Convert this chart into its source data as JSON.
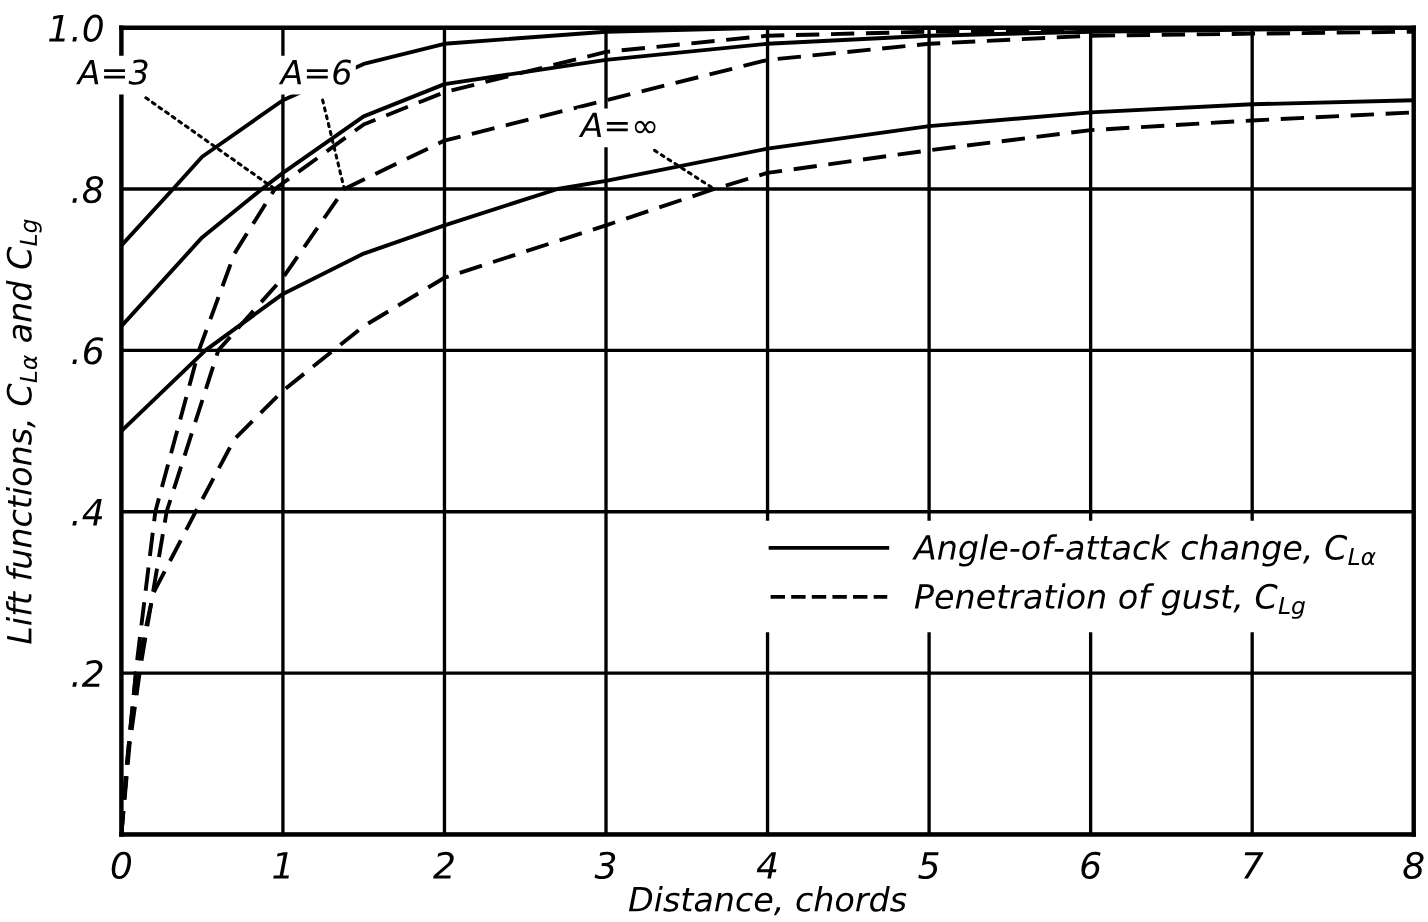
{
  "chart_data": {
    "type": "line",
    "xlabel": "Distance, chords",
    "ylabel": "Lift functions, C$_{Lα}$ and C$_{Lg}$",
    "xlim": [
      0,
      8
    ],
    "xticks": [
      0,
      1,
      2,
      3,
      4,
      5,
      6,
      7,
      8
    ],
    "ylim": [
      0,
      1
    ],
    "yticks": [
      {
        "value": 0,
        "label": null
      },
      {
        "value": 0.2,
        "label": ".2"
      },
      {
        "value": 0.4,
        "label": ".4"
      },
      {
        "value": 0.6,
        "label": ".6"
      },
      {
        "value": 0.8,
        "label": ".8"
      },
      {
        "value": 1.0,
        "label": "1.0"
      }
    ],
    "grid": true,
    "legend": "bottom right",
    "marker": "none",
    "series": [
      {
        "name": "Angle-of-attack change, C$_{Lα}$",
        "color": "#000000",
        "line_style": "solid",
        "x": [
          0,
          0.32,
          0.5,
          1,
          1.5,
          2,
          3,
          4,
          8
        ],
        "values": [
          0.73,
          0.8,
          0.84,
          0.91,
          0.955,
          0.98,
          0.995,
          1.0,
          1.0
        ]
      },
      {
        "color": "#000000",
        "line_style": "solid",
        "x": [
          0,
          0.5,
          0.87,
          1,
          1.5,
          2,
          3,
          4,
          5,
          6,
          8
        ],
        "values": [
          0.63,
          0.74,
          0.8,
          0.82,
          0.89,
          0.93,
          0.96,
          0.98,
          0.99,
          0.995,
          1.0
        ]
      },
      {
        "color": "#000000",
        "line_style": "solid",
        "x": [
          0,
          0.52,
          1,
          1.5,
          2,
          2.7,
          3,
          4,
          5,
          6,
          7,
          8
        ],
        "values": [
          0.5,
          0.6,
          0.67,
          0.72,
          0.755,
          0.8,
          0.81,
          0.85,
          0.878,
          0.895,
          0.905,
          0.91
        ]
      },
      {
        "name": "Penetration of gust, C$_{Lg}$",
        "color": "#000000",
        "line_style": "dashed",
        "x": [
          0,
          0.05,
          0.1,
          0.21,
          0.48,
          0.7,
          0.95,
          1.5,
          2,
          3,
          4,
          5,
          8
        ],
        "values": [
          0,
          0.12,
          0.22,
          0.4,
          0.6,
          0.72,
          0.8,
          0.88,
          0.92,
          0.97,
          0.99,
          0.995,
          1.0
        ]
      },
      {
        "color": "#000000",
        "line_style": "dashed",
        "x": [
          0,
          0.05,
          0.12,
          0.28,
          0.6,
          1,
          1.38,
          2,
          3,
          4,
          5,
          6,
          8
        ],
        "values": [
          0,
          0.11,
          0.21,
          0.4,
          0.6,
          0.69,
          0.8,
          0.86,
          0.91,
          0.96,
          0.98,
          0.99,
          0.995
        ]
      },
      {
        "color": "#000000",
        "line_style": "dashed",
        "x": [
          0,
          0.03,
          0.09,
          0.2,
          0.46,
          0.7,
          1,
          1.5,
          2,
          3,
          3.67,
          4,
          5,
          6,
          7,
          8
        ],
        "values": [
          0,
          0.08,
          0.2,
          0.3,
          0.4,
          0.49,
          0.55,
          0.63,
          0.69,
          0.755,
          0.8,
          0.82,
          0.848,
          0.873,
          0.885,
          0.895
        ]
      }
    ],
    "annotations": [
      {
        "text": "A=3",
        "x": 0.95,
        "y": 0.8
      },
      {
        "text": "A=6",
        "x": 1.38,
        "y": 0.8
      },
      {
        "text": "A=∞",
        "x": 3.67,
        "y": 0.8
      }
    ]
  }
}
